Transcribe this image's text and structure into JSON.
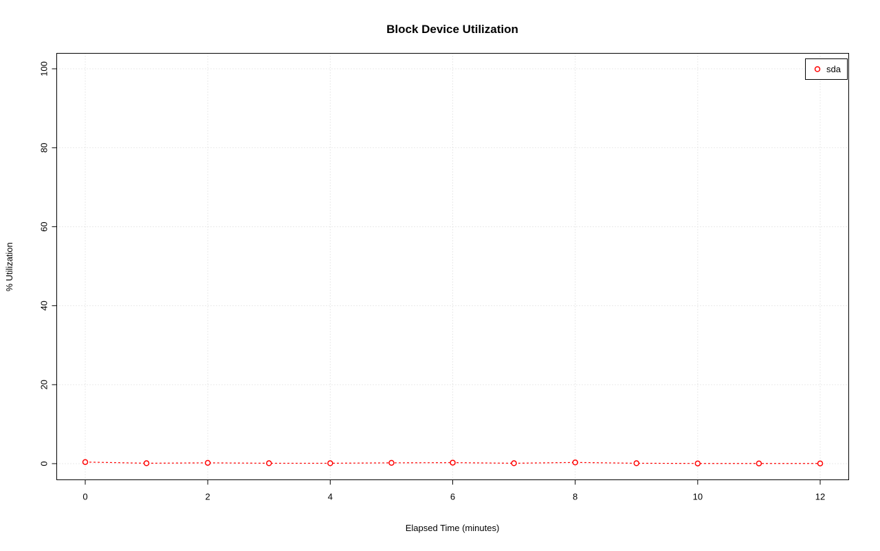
{
  "chart_data": {
    "type": "line",
    "title": "Block Device Utilization",
    "xlabel": "Elapsed Time (minutes)",
    "ylabel": "% Utilization",
    "x": [
      0,
      1,
      2,
      3,
      4,
      5,
      6,
      7,
      8,
      9,
      10,
      11,
      12
    ],
    "series": [
      {
        "name": "sda",
        "color": "#ff0000",
        "values": [
          0.4,
          0.1,
          0.2,
          0.1,
          0.1,
          0.2,
          0.25,
          0.1,
          0.3,
          0.1,
          0.05,
          0.05,
          0.05
        ]
      }
    ],
    "xticks": [
      0,
      2,
      4,
      6,
      8,
      10,
      12
    ],
    "yticks": [
      0,
      20,
      40,
      60,
      80,
      100
    ],
    "xlim": [
      0,
      12
    ],
    "ylim": [
      0,
      100
    ],
    "grid": true,
    "grid_color": "#d3d3d3",
    "grid_style": "dotted",
    "line_style": "dashed",
    "marker": "open-circle",
    "legend_position": "top-right"
  }
}
